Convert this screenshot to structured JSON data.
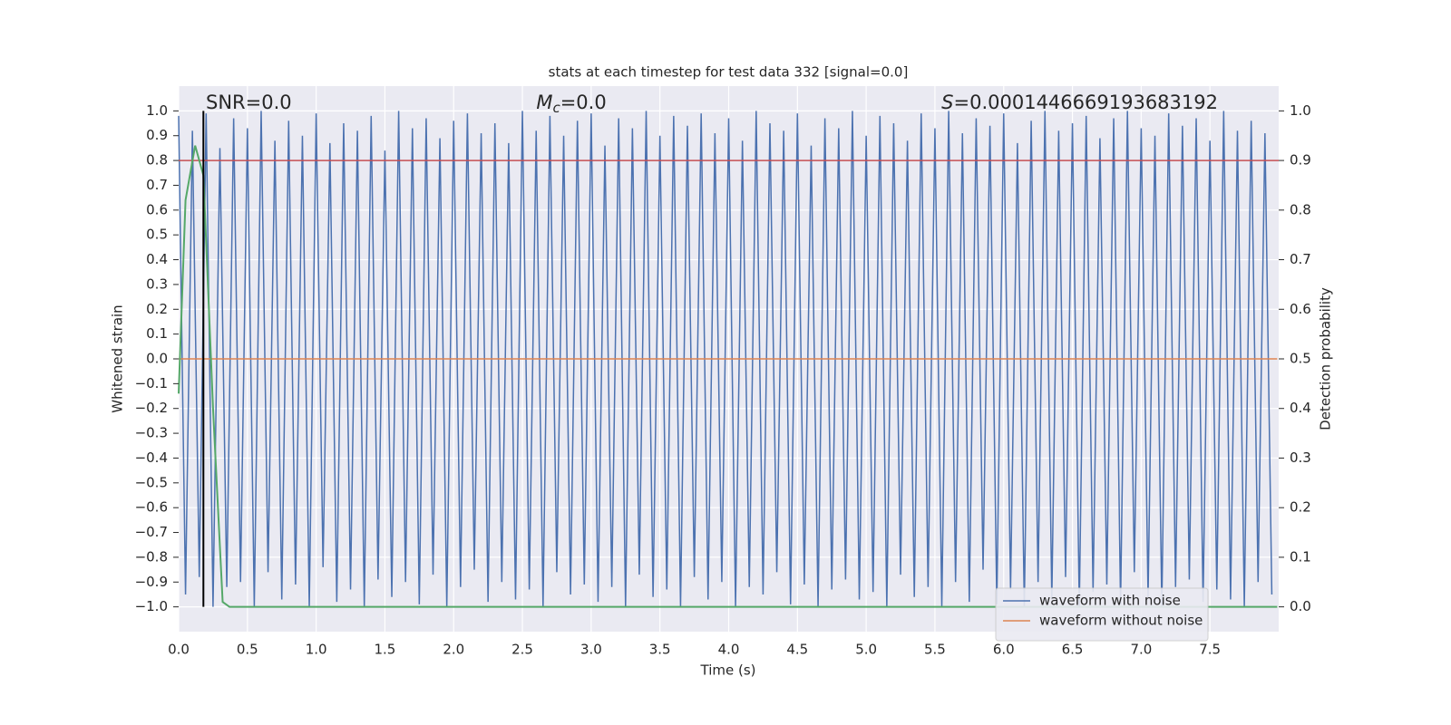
{
  "chart_data": {
    "type": "line",
    "title": "stats at each timestep for test data 332 [signal=0.0]",
    "xlabel": "Time (s)",
    "ylabel": "Whitened strain",
    "y2label": "Detection probability",
    "annotations": [
      {
        "text": "SNR=0.0"
      },
      {
        "symbol": "M",
        "subscript": "c",
        "text": "=0.0"
      },
      {
        "symbol": "S",
        "text": "=0.0001446669193683192"
      }
    ],
    "xlim": [
      0,
      8
    ],
    "ylim": [
      -1.1,
      1.1
    ],
    "y2lim": [
      -0.05,
      1.05
    ],
    "xticks": [
      {
        "value": 0,
        "label": "0.0"
      },
      0.5,
      {
        "value": 1,
        "label": "1.0"
      },
      1.5,
      {
        "value": 2,
        "label": "2.0"
      },
      2.5,
      {
        "value": 3,
        "label": "3.0"
      },
      3.5,
      {
        "value": 4,
        "label": "4.0"
      },
      4.5,
      {
        "value": 5,
        "label": "5.0"
      },
      5.5,
      {
        "value": 6,
        "label": "6.0"
      },
      6.5,
      {
        "value": 7,
        "label": "7.0"
      },
      7.5
    ],
    "yticks": [
      {
        "value": -1,
        "label": "−1.0"
      },
      {
        "value": -0.9,
        "label": "−0.9"
      },
      {
        "value": -0.8,
        "label": "−0.8"
      },
      {
        "value": -0.7,
        "label": "−0.7"
      },
      {
        "value": -0.6,
        "label": "−0.6"
      },
      {
        "value": -0.5,
        "label": "−0.5"
      },
      {
        "value": -0.4,
        "label": "−0.4"
      },
      {
        "value": -0.3,
        "label": "−0.3"
      },
      {
        "value": -0.2,
        "label": "−0.2"
      },
      {
        "value": -0.1,
        "label": "−0.1"
      },
      {
        "value": 0,
        "label": "0.0"
      },
      0.1,
      0.2,
      0.3,
      0.4,
      0.5,
      0.6,
      0.7,
      0.8,
      0.9,
      {
        "value": 1,
        "label": "1.0"
      }
    ],
    "y2ticks": [
      {
        "value": 0,
        "label": "0.0"
      },
      0.1,
      0.2,
      0.3,
      0.4,
      0.5,
      0.6,
      0.7,
      0.8,
      0.9,
      {
        "value": 1,
        "label": "1.0"
      }
    ],
    "grid": true,
    "legend": "lower right",
    "series": [
      {
        "name": "waveform with noise",
        "color": "#4c72b0",
        "x": [
          0,
          0.05,
          0.1,
          0.15,
          0.2,
          0.25,
          0.3,
          0.35,
          0.4,
          0.45,
          0.5,
          0.55,
          0.6,
          0.65,
          0.7,
          0.75,
          0.8,
          0.85,
          0.9,
          0.95,
          1,
          1.05,
          1.1,
          1.15,
          1.2,
          1.25,
          1.3,
          1.35,
          1.4,
          1.45,
          1.5,
          1.55,
          1.6,
          1.65,
          1.7,
          1.75,
          1.8,
          1.85,
          1.9,
          1.95,
          2,
          2.05,
          2.1,
          2.15,
          2.2,
          2.25,
          2.3,
          2.35,
          2.4,
          2.45,
          2.5,
          2.55,
          2.6,
          2.65,
          2.7,
          2.75,
          2.8,
          2.85,
          2.9,
          2.95,
          3,
          3.05,
          3.1,
          3.15,
          3.2,
          3.25,
          3.3,
          3.35,
          3.4,
          3.45,
          3.5,
          3.55,
          3.6,
          3.65,
          3.7,
          3.75,
          3.8,
          3.85,
          3.9,
          3.95,
          4,
          4.05,
          4.1,
          4.15,
          4.2,
          4.25,
          4.3,
          4.35,
          4.4,
          4.45,
          4.5,
          4.55,
          4.6,
          4.65,
          4.7,
          4.75,
          4.8,
          4.85,
          4.9,
          4.95,
          5,
          5.05,
          5.1,
          5.15,
          5.2,
          5.25,
          5.3,
          5.35,
          5.4,
          5.45,
          5.5,
          5.55,
          5.6,
          5.65,
          5.7,
          5.75,
          5.8,
          5.85,
          5.9,
          5.95,
          6,
          6.05,
          6.1,
          6.15,
          6.2,
          6.25,
          6.3,
          6.35,
          6.4,
          6.45,
          6.5,
          6.55,
          6.6,
          6.65,
          6.7,
          6.75,
          6.8,
          6.85,
          6.9,
          6.95,
          7,
          7.05,
          7.1,
          7.15,
          7.2,
          7.25,
          7.3,
          7.35,
          7.4,
          7.45,
          7.5,
          7.55,
          7.6,
          7.65,
          7.7,
          7.75,
          7.8,
          7.85,
          7.9,
          7.95
        ],
        "values": [
          0.98,
          -0.95,
          0.92,
          -0.88,
          0.99,
          -1.0,
          0.85,
          -0.92,
          0.97,
          -0.9,
          0.93,
          -1.0,
          1.0,
          -0.86,
          0.88,
          -0.97,
          0.96,
          -0.91,
          0.9,
          -1.0,
          0.99,
          -0.84,
          0.87,
          -0.98,
          0.95,
          -0.93,
          0.92,
          -1.0,
          0.98,
          -0.89,
          0.84,
          -0.96,
          1.0,
          -0.9,
          0.93,
          -0.99,
          0.97,
          -0.87,
          0.89,
          -1.0,
          0.96,
          -0.92,
          0.99,
          -0.85,
          0.91,
          -0.98,
          0.95,
          -0.9,
          0.87,
          -0.97,
          1.0,
          -0.93,
          0.92,
          -1.0,
          0.98,
          -0.86,
          0.9,
          -0.95,
          0.96,
          -0.91,
          0.99,
          -0.98,
          0.86,
          -0.92,
          0.97,
          -1.0,
          0.93,
          -0.87,
          1.0,
          -0.96,
          0.9,
          -0.93,
          0.98,
          -1.0,
          0.94,
          -0.88,
          0.99,
          -0.97,
          0.91,
          -0.9,
          0.97,
          -1.0,
          0.88,
          -0.92,
          1.0,
          -0.95,
          0.95,
          -0.86,
          0.92,
          -0.99,
          0.99,
          -0.91,
          0.86,
          -1.0,
          0.97,
          -0.93,
          0.93,
          -0.89,
          1.0,
          -0.97,
          0.9,
          -0.94,
          0.98,
          -1.0,
          0.95,
          -0.87,
          0.88,
          -0.96,
          0.99,
          -0.92,
          0.93,
          -1.0,
          1.0,
          -0.9,
          0.91,
          -0.98,
          0.97,
          -0.85,
          0.94,
          -0.99,
          0.99,
          -0.93,
          0.87,
          -1.0,
          0.96,
          -0.9,
          1.0,
          -0.97,
          0.92,
          -0.88,
          0.95,
          -1.0,
          0.98,
          -0.94,
          0.89,
          -0.91,
          0.97,
          -0.99,
          1.0,
          -0.86,
          0.93,
          -0.96,
          0.9,
          -1.0,
          0.99,
          -0.92,
          0.94,
          -0.89,
          0.97,
          -0.98,
          0.88,
          -0.93,
          1.0,
          -0.97,
          0.92,
          -1.0,
          0.96,
          -0.9,
          0.91,
          -0.95
        ]
      },
      {
        "name": "waveform without noise",
        "color": "#dd8452",
        "x": [
          0,
          7.99
        ],
        "values": [
          0,
          0
        ]
      }
    ],
    "probability": {
      "color": "#55a868",
      "axis": "y2",
      "x": [
        0,
        0.05,
        0.12,
        0.18,
        0.25,
        0.32,
        0.37,
        7.99
      ],
      "values": [
        0.43,
        0.82,
        0.93,
        0.87,
        0.4,
        0.01,
        0,
        0
      ]
    },
    "hlines": [
      {
        "value": 0.9,
        "axis": "y2",
        "color": "#c44e52"
      }
    ],
    "vlines": [
      {
        "value": 0.18,
        "ymin": -1,
        "ymax": 1,
        "color": "#000000"
      }
    ]
  }
}
